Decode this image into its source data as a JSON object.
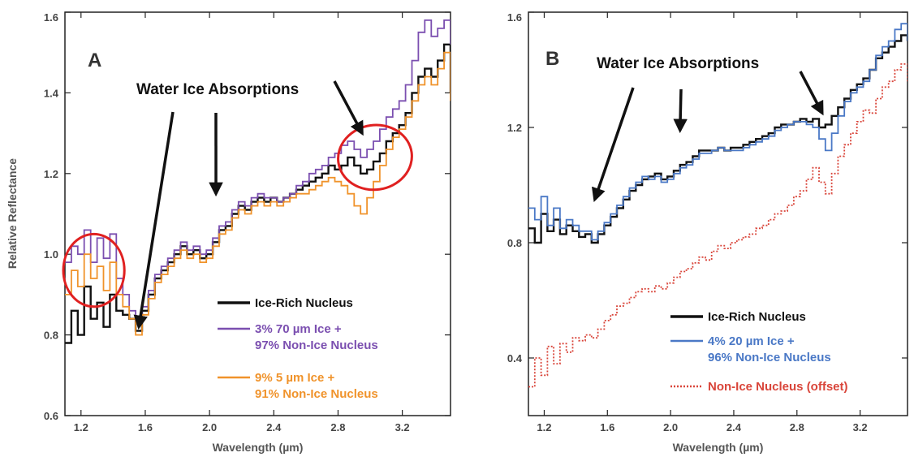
{
  "colors": {
    "black": "#111111",
    "purple": "#7b4fb0",
    "orange": "#f0932b",
    "blue": "#4a78c6",
    "red_dotted": "#d9453a",
    "circle": "#e02020"
  },
  "chart_data": [
    {
      "type": "line",
      "panel": "A",
      "annotation": "Water Ice Absorptions",
      "xlabel": "Wavelength (µm)",
      "ylabel": "Relative Reflectance",
      "xlim": [
        1.1,
        3.5
      ],
      "ylim": [
        0.6,
        1.6
      ],
      "xticks": [
        "1.2",
        "1.6",
        "2.0",
        "2.4",
        "2.8",
        "3.2"
      ],
      "yticks": [
        "0.6",
        "0.8",
        "1.0",
        "1.2",
        "1.4",
        "1.6"
      ],
      "grid": false,
      "legend_position": "bottom-right",
      "highlight_circles": [
        {
          "center": [
            1.28,
            0.96
          ],
          "rx": 0.19,
          "ry": 0.09
        },
        {
          "center": [
            3.03,
            1.24
          ],
          "rx": 0.23,
          "ry": 0.08
        }
      ],
      "arrow_targets": [
        [
          1.56,
          0.82
        ],
        [
          2.04,
          1.15
        ],
        [
          2.95,
          1.3
        ]
      ],
      "series": [
        {
          "name": "Ice-Rich Nucleus",
          "color": "#111111",
          "x": [
            1.1,
            1.14,
            1.18,
            1.22,
            1.26,
            1.3,
            1.34,
            1.38,
            1.42,
            1.46,
            1.5,
            1.54,
            1.58,
            1.62,
            1.66,
            1.7,
            1.74,
            1.78,
            1.82,
            1.86,
            1.9,
            1.94,
            1.98,
            2.02,
            2.06,
            2.1,
            2.14,
            2.18,
            2.22,
            2.26,
            2.3,
            2.34,
            2.38,
            2.42,
            2.46,
            2.5,
            2.54,
            2.58,
            2.62,
            2.66,
            2.7,
            2.74,
            2.78,
            2.82,
            2.86,
            2.9,
            2.94,
            2.98,
            3.02,
            3.06,
            3.1,
            3.14,
            3.18,
            3.22,
            3.26,
            3.3,
            3.34,
            3.38,
            3.42,
            3.46,
            3.5
          ],
          "y": [
            0.78,
            0.86,
            0.8,
            0.92,
            0.84,
            0.88,
            0.82,
            0.9,
            0.86,
            0.85,
            0.84,
            0.81,
            0.86,
            0.9,
            0.94,
            0.96,
            0.98,
            1.0,
            1.02,
            1.0,
            1.01,
            0.99,
            1.0,
            1.03,
            1.06,
            1.07,
            1.1,
            1.12,
            1.11,
            1.13,
            1.14,
            1.13,
            1.14,
            1.13,
            1.14,
            1.15,
            1.16,
            1.17,
            1.18,
            1.19,
            1.2,
            1.22,
            1.21,
            1.22,
            1.24,
            1.22,
            1.2,
            1.21,
            1.23,
            1.25,
            1.28,
            1.3,
            1.32,
            1.35,
            1.4,
            1.44,
            1.46,
            1.44,
            1.48,
            1.52,
            1.4
          ]
        },
        {
          "name": "3% 70 µm Ice + 97% Non-Ice Nucleus",
          "color": "#7b4fb0",
          "x": [
            1.1,
            1.14,
            1.18,
            1.22,
            1.26,
            1.3,
            1.34,
            1.38,
            1.42,
            1.46,
            1.5,
            1.54,
            1.58,
            1.62,
            1.66,
            1.7,
            1.74,
            1.78,
            1.82,
            1.86,
            1.9,
            1.94,
            1.98,
            2.02,
            2.06,
            2.1,
            2.14,
            2.18,
            2.22,
            2.26,
            2.3,
            2.34,
            2.38,
            2.42,
            2.46,
            2.5,
            2.54,
            2.58,
            2.62,
            2.66,
            2.7,
            2.74,
            2.78,
            2.82,
            2.86,
            2.9,
            2.94,
            2.98,
            3.02,
            3.06,
            3.1,
            3.14,
            3.18,
            3.22,
            3.26,
            3.3,
            3.34,
            3.38,
            3.42,
            3.46,
            3.5
          ],
          "y": [
            0.98,
            1.02,
            1.0,
            1.06,
            0.98,
            1.04,
            0.99,
            1.05,
            0.94,
            0.9,
            0.86,
            0.83,
            0.87,
            0.91,
            0.95,
            0.97,
            0.99,
            1.01,
            1.03,
            1.01,
            1.02,
            1.0,
            1.01,
            1.04,
            1.07,
            1.08,
            1.11,
            1.13,
            1.12,
            1.14,
            1.15,
            1.14,
            1.14,
            1.13,
            1.14,
            1.15,
            1.17,
            1.18,
            1.2,
            1.21,
            1.22,
            1.24,
            1.25,
            1.27,
            1.28,
            1.26,
            1.24,
            1.26,
            1.28,
            1.31,
            1.34,
            1.36,
            1.38,
            1.42,
            1.48,
            1.55,
            1.58,
            1.54,
            1.56,
            1.58,
            1.52
          ]
        },
        {
          "name": "9% 5 µm Ice + 91% Non-Ice Nucleus",
          "color": "#f0932b",
          "x": [
            1.1,
            1.14,
            1.18,
            1.22,
            1.26,
            1.3,
            1.34,
            1.38,
            1.42,
            1.46,
            1.5,
            1.54,
            1.58,
            1.62,
            1.66,
            1.7,
            1.74,
            1.78,
            1.82,
            1.86,
            1.9,
            1.94,
            1.98,
            2.02,
            2.06,
            2.1,
            2.14,
            2.18,
            2.22,
            2.26,
            2.3,
            2.34,
            2.38,
            2.42,
            2.46,
            2.5,
            2.54,
            2.58,
            2.62,
            2.66,
            2.7,
            2.74,
            2.78,
            2.82,
            2.86,
            2.9,
            2.94,
            2.98,
            3.02,
            3.06,
            3.1,
            3.14,
            3.18,
            3.22,
            3.26,
            3.3,
            3.34,
            3.38,
            3.42,
            3.46,
            3.5
          ],
          "y": [
            0.9,
            0.96,
            0.92,
            1.0,
            0.94,
            0.97,
            0.91,
            0.98,
            0.9,
            0.87,
            0.84,
            0.8,
            0.85,
            0.89,
            0.93,
            0.95,
            0.97,
            0.99,
            1.01,
            0.99,
            1.0,
            0.98,
            0.99,
            1.02,
            1.05,
            1.06,
            1.09,
            1.11,
            1.1,
            1.12,
            1.13,
            1.12,
            1.13,
            1.12,
            1.13,
            1.14,
            1.15,
            1.15,
            1.16,
            1.17,
            1.18,
            1.19,
            1.18,
            1.17,
            1.15,
            1.12,
            1.1,
            1.14,
            1.18,
            1.22,
            1.26,
            1.29,
            1.31,
            1.34,
            1.38,
            1.42,
            1.44,
            1.42,
            1.46,
            1.5,
            1.38
          ]
        }
      ]
    },
    {
      "type": "line",
      "panel": "B",
      "annotation": "Water Ice Absorptions",
      "xlabel": "Wavelength (µm)",
      "ylabel": "",
      "xlim": [
        1.1,
        3.5
      ],
      "ylim": [
        0.2,
        1.6
      ],
      "xticks": [
        "1.2",
        "1.6",
        "2.0",
        "2.4",
        "2.8",
        "3.2"
      ],
      "yticks": [
        "0.4",
        "0.8",
        "1.2",
        "1.6"
      ],
      "grid": false,
      "legend_position": "bottom-right",
      "arrow_targets": [
        [
          1.52,
          0.95
        ],
        [
          2.06,
          1.19
        ],
        [
          2.96,
          1.25
        ]
      ],
      "series": [
        {
          "name": "Ice-Rich Nucleus",
          "color": "#111111",
          "x": [
            1.1,
            1.14,
            1.18,
            1.22,
            1.26,
            1.3,
            1.34,
            1.38,
            1.42,
            1.46,
            1.5,
            1.54,
            1.58,
            1.62,
            1.66,
            1.7,
            1.74,
            1.78,
            1.82,
            1.86,
            1.9,
            1.94,
            1.98,
            2.02,
            2.06,
            2.1,
            2.14,
            2.18,
            2.22,
            2.26,
            2.3,
            2.34,
            2.38,
            2.42,
            2.46,
            2.5,
            2.54,
            2.58,
            2.62,
            2.66,
            2.7,
            2.74,
            2.78,
            2.82,
            2.86,
            2.9,
            2.94,
            2.98,
            3.02,
            3.06,
            3.1,
            3.14,
            3.18,
            3.22,
            3.26,
            3.3,
            3.34,
            3.38,
            3.42,
            3.46,
            3.5
          ],
          "y": [
            0.85,
            0.8,
            0.9,
            0.84,
            0.88,
            0.83,
            0.86,
            0.84,
            0.82,
            0.83,
            0.8,
            0.83,
            0.86,
            0.89,
            0.92,
            0.95,
            0.98,
            1.0,
            1.02,
            1.03,
            1.04,
            1.02,
            1.03,
            1.05,
            1.07,
            1.08,
            1.1,
            1.12,
            1.12,
            1.12,
            1.13,
            1.12,
            1.13,
            1.13,
            1.14,
            1.15,
            1.16,
            1.17,
            1.18,
            1.2,
            1.21,
            1.21,
            1.22,
            1.23,
            1.22,
            1.23,
            1.2,
            1.21,
            1.24,
            1.27,
            1.3,
            1.33,
            1.35,
            1.37,
            1.4,
            1.44,
            1.46,
            1.48,
            1.5,
            1.52,
            1.5
          ]
        },
        {
          "name": "4% 20 µm Ice + 96% Non-Ice Nucleus",
          "color": "#4a78c6",
          "x": [
            1.1,
            1.14,
            1.18,
            1.22,
            1.26,
            1.3,
            1.34,
            1.38,
            1.42,
            1.46,
            1.5,
            1.54,
            1.58,
            1.62,
            1.66,
            1.7,
            1.74,
            1.78,
            1.82,
            1.86,
            1.9,
            1.94,
            1.98,
            2.02,
            2.06,
            2.1,
            2.14,
            2.18,
            2.22,
            2.26,
            2.3,
            2.34,
            2.38,
            2.42,
            2.46,
            2.5,
            2.54,
            2.58,
            2.62,
            2.66,
            2.7,
            2.74,
            2.78,
            2.82,
            2.86,
            2.9,
            2.94,
            2.98,
            3.02,
            3.06,
            3.1,
            3.14,
            3.18,
            3.22,
            3.26,
            3.3,
            3.34,
            3.38,
            3.42,
            3.46,
            3.5
          ],
          "y": [
            0.92,
            0.88,
            0.96,
            0.86,
            0.92,
            0.85,
            0.88,
            0.86,
            0.84,
            0.84,
            0.81,
            0.84,
            0.87,
            0.9,
            0.93,
            0.96,
            0.99,
            1.01,
            1.03,
            1.02,
            1.03,
            1.01,
            1.02,
            1.04,
            1.06,
            1.07,
            1.09,
            1.11,
            1.11,
            1.12,
            1.13,
            1.12,
            1.12,
            1.12,
            1.13,
            1.14,
            1.15,
            1.16,
            1.17,
            1.19,
            1.2,
            1.21,
            1.22,
            1.22,
            1.21,
            1.2,
            1.16,
            1.12,
            1.18,
            1.24,
            1.29,
            1.32,
            1.34,
            1.36,
            1.4,
            1.45,
            1.48,
            1.5,
            1.54,
            1.56,
            1.5
          ]
        },
        {
          "name": "Non-Ice Nucleus (offset)",
          "color": "#d9453a",
          "dashed": true,
          "x": [
            1.1,
            1.14,
            1.18,
            1.22,
            1.26,
            1.3,
            1.34,
            1.38,
            1.42,
            1.46,
            1.5,
            1.54,
            1.58,
            1.62,
            1.66,
            1.7,
            1.74,
            1.78,
            1.82,
            1.86,
            1.9,
            1.94,
            1.98,
            2.02,
            2.06,
            2.1,
            2.14,
            2.18,
            2.22,
            2.26,
            2.3,
            2.34,
            2.38,
            2.42,
            2.46,
            2.5,
            2.54,
            2.58,
            2.62,
            2.66,
            2.7,
            2.74,
            2.78,
            2.82,
            2.86,
            2.9,
            2.94,
            2.98,
            3.02,
            3.06,
            3.1,
            3.14,
            3.18,
            3.22,
            3.26,
            3.3,
            3.34,
            3.38,
            3.42,
            3.46,
            3.5
          ],
          "y": [
            0.3,
            0.4,
            0.34,
            0.44,
            0.38,
            0.45,
            0.42,
            0.47,
            0.46,
            0.48,
            0.47,
            0.5,
            0.53,
            0.55,
            0.58,
            0.59,
            0.61,
            0.63,
            0.64,
            0.63,
            0.65,
            0.64,
            0.66,
            0.68,
            0.7,
            0.71,
            0.73,
            0.75,
            0.74,
            0.77,
            0.79,
            0.78,
            0.8,
            0.81,
            0.82,
            0.83,
            0.85,
            0.86,
            0.88,
            0.9,
            0.91,
            0.93,
            0.96,
            0.98,
            1.02,
            1.06,
            1.01,
            0.97,
            1.04,
            1.1,
            1.14,
            1.18,
            1.22,
            1.26,
            1.25,
            1.3,
            1.34,
            1.36,
            1.4,
            1.42,
            1.36
          ]
        }
      ]
    }
  ]
}
